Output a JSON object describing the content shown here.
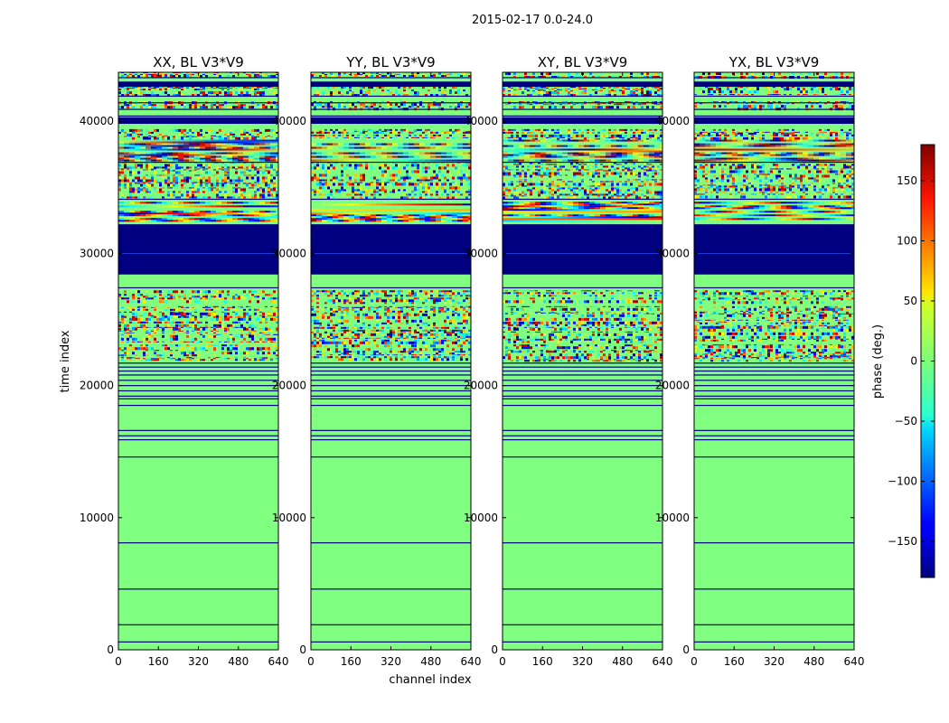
{
  "figure": {
    "suptitle": "2015-02-17 0.0-24.0",
    "xlabel": "channel index",
    "ylabel": "time index",
    "colorbar_label": "phase (deg.)"
  },
  "chart_data": {
    "type": "heatmap",
    "x_range": [
      0,
      640
    ],
    "y_range": [
      0,
      43700
    ],
    "x_ticks": [
      0,
      160,
      320,
      480,
      640
    ],
    "y_ticks": [
      0,
      10000,
      20000,
      30000,
      40000
    ],
    "color_range": [
      -180,
      180
    ],
    "colorbar_ticks": [
      -150,
      -100,
      -50,
      0,
      50,
      100,
      150
    ],
    "colormap": "jet",
    "background_value": 0,
    "panels": [
      {
        "title": "XX, BL V3*V9"
      },
      {
        "title": "YY, BL V3*V9"
      },
      {
        "title": "XY, BL V3*V9"
      },
      {
        "title": "YX, BL V3*V9"
      }
    ],
    "flagged_band": [
      28400,
      32200
    ],
    "thin_flag_rows": [
      600,
      1900,
      4600,
      8100,
      14600,
      15900,
      16200,
      16600,
      18500,
      19000,
      19200,
      19600,
      20000,
      20400,
      20800,
      21100,
      21400,
      21700,
      27400,
      34100,
      36900,
      40400,
      40900,
      41400,
      41900,
      42900,
      43300
    ],
    "noisy_bands": [
      [
        21900,
        23100
      ],
      [
        23300,
        26000
      ],
      [
        26300,
        27200
      ],
      [
        34300,
        35600
      ],
      [
        35700,
        36900
      ],
      [
        38700,
        39400
      ],
      [
        41000,
        41500
      ],
      [
        42000,
        42600
      ],
      [
        43400,
        43700
      ]
    ],
    "fringe_bands": [
      [
        32400,
        33900
      ],
      [
        37000,
        38600
      ]
    ],
    "solid_rows": [
      [
        39800,
        40300
      ],
      [
        42600,
        43000
      ]
    ]
  }
}
